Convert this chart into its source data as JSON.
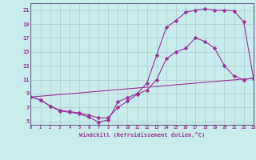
{
  "xlabel": "Windchill (Refroidissement éolien,°C)",
  "bg_color": "#c8ecec",
  "line_color": "#993399",
  "grid_color": "#aacccc",
  "border_color": "#666688",
  "xlim": [
    0,
    23
  ],
  "ylim": [
    4.5,
    22
  ],
  "xticks": [
    0,
    1,
    2,
    3,
    4,
    5,
    6,
    7,
    8,
    9,
    10,
    11,
    12,
    13,
    14,
    15,
    16,
    17,
    18,
    19,
    20,
    21,
    22,
    23
  ],
  "yticks": [
    5,
    7,
    9,
    11,
    13,
    15,
    17,
    19,
    21
  ],
  "curve1_x": [
    0,
    1,
    2,
    3,
    4,
    5,
    6,
    7,
    8,
    9,
    10,
    11,
    12,
    13,
    14,
    15,
    16,
    17,
    18,
    19,
    20,
    21,
    22,
    23
  ],
  "curve1_y": [
    8.5,
    8.1,
    7.2,
    6.5,
    6.3,
    6.1,
    5.6,
    4.9,
    5.2,
    7.8,
    8.4,
    9.0,
    10.5,
    14.5,
    18.5,
    19.5,
    20.7,
    21.0,
    21.2,
    21.0,
    21.0,
    20.9,
    19.3,
    11.2
  ],
  "curve2_x": [
    0,
    1,
    2,
    3,
    4,
    5,
    6,
    7,
    8,
    9,
    10,
    11,
    12,
    13,
    14,
    15,
    16,
    17,
    18,
    19,
    20,
    21,
    22,
    23
  ],
  "curve2_y": [
    8.5,
    8.1,
    7.2,
    6.6,
    6.4,
    6.2,
    5.9,
    5.5,
    5.5,
    7.0,
    7.9,
    8.9,
    9.5,
    11.0,
    14.0,
    15.0,
    15.5,
    17.0,
    16.5,
    15.5,
    13.0,
    11.5,
    11.0,
    11.2
  ],
  "curve3_x": [
    0,
    23
  ],
  "curve3_y": [
    8.5,
    11.2
  ],
  "marker": "D",
  "markersize": 2.5,
  "linewidth": 0.8
}
